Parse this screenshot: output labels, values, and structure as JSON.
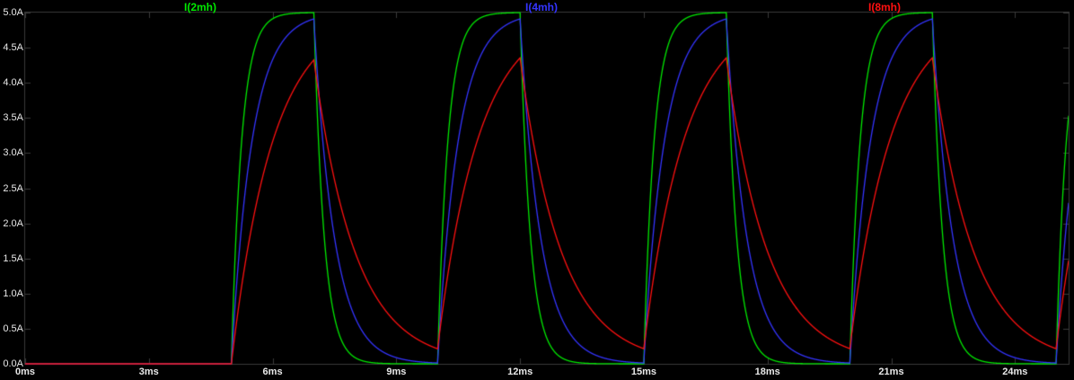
{
  "chart_data": {
    "type": "line",
    "title": "",
    "x_unit": "ms",
    "y_unit": "A",
    "xlim": [
      0,
      25.3
    ],
    "ylim": [
      0,
      5
    ],
    "background": "#000000",
    "axis_color": "#3a3a3a",
    "tick_label_color": "#e8e8e8",
    "grid": false,
    "legend_position": "top",
    "x_ticks": [
      {
        "value": 0,
        "label": "0ms"
      },
      {
        "value": 3,
        "label": "3ms"
      },
      {
        "value": 6,
        "label": "6ms"
      },
      {
        "value": 9,
        "label": "9ms"
      },
      {
        "value": 12,
        "label": "12ms"
      },
      {
        "value": 15,
        "label": "15ms"
      },
      {
        "value": 18,
        "label": "18ms"
      },
      {
        "value": 21,
        "label": "21ms"
      },
      {
        "value": 24,
        "label": "24ms"
      }
    ],
    "y_ticks": [
      {
        "value": 5.0,
        "label": "5.0A"
      },
      {
        "value": 4.5,
        "label": "4.5A"
      },
      {
        "value": 4.0,
        "label": "4.0A"
      },
      {
        "value": 3.5,
        "label": "3.5A"
      },
      {
        "value": 3.0,
        "label": "3.0A"
      },
      {
        "value": 2.5,
        "label": "2.5A"
      },
      {
        "value": 2.0,
        "label": "2.0A"
      },
      {
        "value": 1.5,
        "label": "1.5A"
      },
      {
        "value": 1.0,
        "label": "1.0A"
      },
      {
        "value": 0.5,
        "label": "0.5A"
      },
      {
        "value": 0.0,
        "label": "0.0A"
      }
    ],
    "waveform": {
      "shape": "periodic-exponential-charge-discharge",
      "pulse_start_ms": 5,
      "period_ms": 5,
      "on_ms": 2,
      "target_A": 5,
      "initial_A": 0
    },
    "series": [
      {
        "name": "I(2mh)",
        "color": "#00e800",
        "tau_ms": 0.25,
        "peak_A": 5.0,
        "trough_A": 0.0
      },
      {
        "name": "I(4mh)",
        "color": "#3434ff",
        "tau_ms": 0.5,
        "peak_A": 4.9,
        "trough_A": 0.01
      },
      {
        "name": "I(8mh)",
        "color": "#ff1010",
        "tau_ms": 1.0,
        "peak_A": 4.35,
        "trough_A": 0.22
      }
    ]
  }
}
